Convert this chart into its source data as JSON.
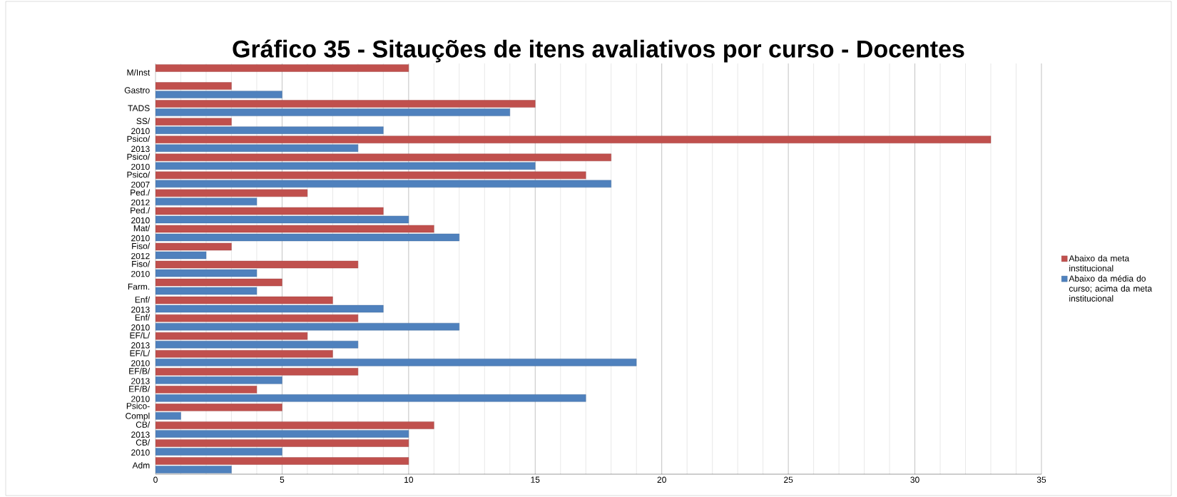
{
  "chart_data": {
    "type": "bar",
    "orientation": "horizontal",
    "title": "Gráfico 35 - Sitauções de itens avaliativos por curso - Docentes",
    "categories": [
      "M/Inst",
      "Gastro",
      "TADS",
      "SS/ 2010",
      "Psico/ 2013",
      "Psico/ 2010",
      "Psico/ 2007",
      "Ped./ 2012",
      "Ped./ 2010",
      "Mat/ 2010",
      "Fiso/ 2012",
      "Fiso/ 2010",
      "Farm.",
      "Enf/ 2013",
      "Enf/ 2010",
      "EF/L/ 2013",
      "EF/L/ 2010",
      "EF/B/ 2013",
      "EF/B/ 2010",
      "Psico- Compl",
      "CB/ 2013",
      "CB/ 2010",
      "Adm"
    ],
    "series": [
      {
        "name": "Abaixo da meta institucional",
        "color": "#c0504d",
        "values": [
          10,
          3,
          15,
          3,
          33,
          18,
          17,
          6,
          9,
          11,
          3,
          8,
          5,
          7,
          8,
          6,
          7,
          8,
          4,
          5,
          11,
          10,
          10
        ]
      },
      {
        "name": "Abaixo da média do curso; acima da meta institucional",
        "color": "#4f81bd",
        "values": [
          null,
          5,
          14,
          9,
          8,
          15,
          18,
          4,
          10,
          12,
          2,
          4,
          4,
          9,
          12,
          8,
          19,
          5,
          17,
          1,
          10,
          5,
          3
        ]
      }
    ],
    "xlim": [
      0,
      35
    ],
    "xticks": [
      0,
      5,
      10,
      15,
      20,
      25,
      30,
      35
    ],
    "grid": "x",
    "legend": "right"
  }
}
